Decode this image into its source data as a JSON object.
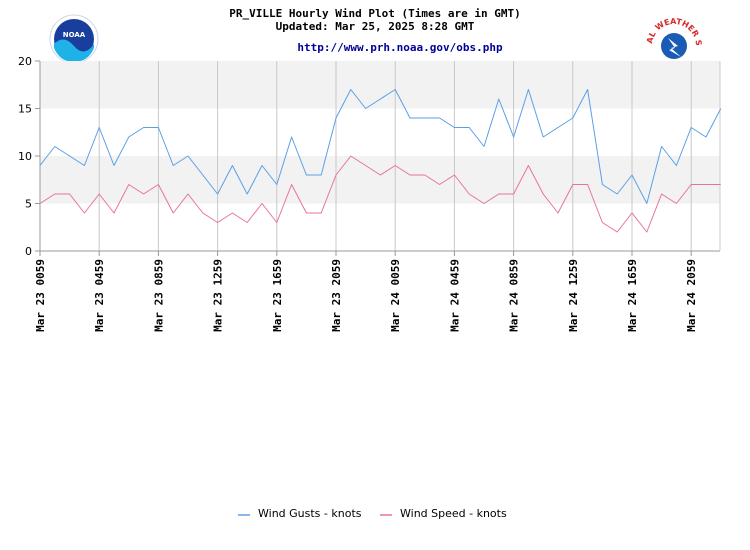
{
  "header": {
    "title_line1": "PR_VILLE Hourly Wind Plot (Times are in GMT)",
    "title_line2": "Updated: Mar 25, 2025 8:28 GMT",
    "url": "http://www.prh.noaa.gov/obs.php"
  },
  "logos": {
    "left": {
      "name": "noaa-logo",
      "text": "NOAA"
    },
    "right": {
      "name": "nws-logo",
      "text": "NATIONAL WEATHER SERVICE"
    }
  },
  "colors": {
    "gust": "#5aa0e6",
    "speed": "#e8739a",
    "band": "#f2f2f2",
    "grid": "#c8c8c8"
  },
  "chart_data": {
    "type": "line",
    "title": "PR_VILLE Hourly Wind Plot (Times are in GMT)",
    "ylim": [
      0,
      20
    ],
    "yticks": [
      0,
      5,
      10,
      15,
      20
    ],
    "x_tick_labels": [
      "Mar 23 0059",
      "Mar 23 0459",
      "Mar 23 0859",
      "Mar 23 1259",
      "Mar 23 1659",
      "Mar 23 2059",
      "Mar 24 0059",
      "Mar 24 0459",
      "Mar 24 0859",
      "Mar 24 1259",
      "Mar 24 1659",
      "Mar 24 2059"
    ],
    "x_tick_every": 4,
    "grid": true,
    "legend_position": "bottom-center",
    "series": [
      {
        "name": "Wind Gusts - knots",
        "color": "#5aa0e6",
        "values": [
          9,
          11,
          10,
          9,
          13,
          9,
          12,
          13,
          13,
          9,
          10,
          8,
          6,
          9,
          6,
          9,
          7,
          12,
          8,
          8,
          14,
          17,
          15,
          16,
          17,
          14,
          14,
          14,
          13,
          13,
          11,
          16,
          12,
          17,
          12,
          13,
          14,
          17,
          7,
          6,
          8,
          5,
          11,
          9,
          13,
          12,
          15
        ]
      },
      {
        "name": "Wind Speed - knots",
        "color": "#e8739a",
        "values": [
          5,
          6,
          6,
          4,
          6,
          4,
          7,
          6,
          7,
          4,
          6,
          4,
          3,
          4,
          3,
          5,
          3,
          7,
          4,
          4,
          8,
          10,
          9,
          8,
          9,
          8,
          8,
          7,
          8,
          6,
          5,
          6,
          6,
          9,
          6,
          4,
          7,
          7,
          3,
          2,
          4,
          2,
          6,
          5,
          7,
          7,
          7
        ]
      }
    ]
  }
}
